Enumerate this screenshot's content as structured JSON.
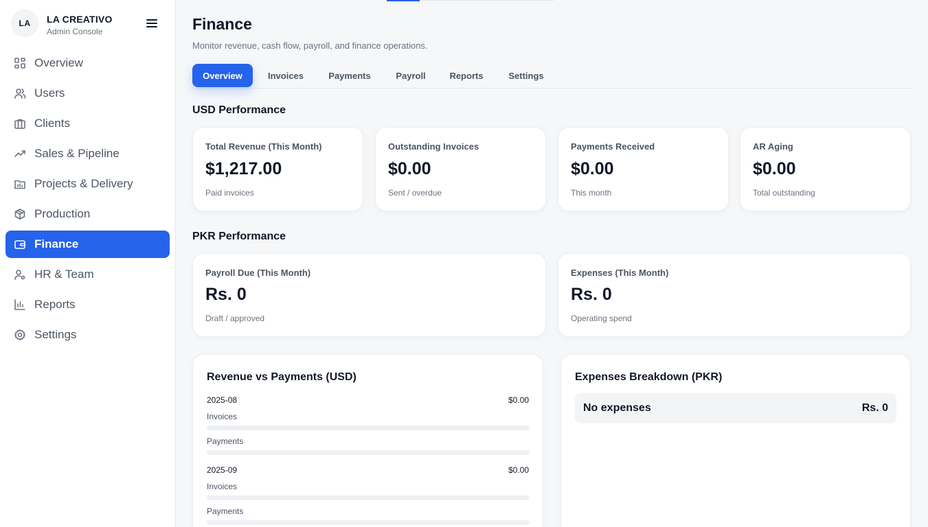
{
  "brand": {
    "initials": "LA",
    "name": "LA CREATIVO",
    "subtitle": "Admin Console"
  },
  "sidebar": {
    "items": [
      {
        "label": "Overview",
        "icon": "grid-icon",
        "active": false
      },
      {
        "label": "Users",
        "icon": "users-icon",
        "active": false
      },
      {
        "label": "Clients",
        "icon": "briefcase-icon",
        "active": false
      },
      {
        "label": "Sales & Pipeline",
        "icon": "trending-up-icon",
        "active": false
      },
      {
        "label": "Projects & Delivery",
        "icon": "folder-icon",
        "active": false
      },
      {
        "label": "Production",
        "icon": "box-icon",
        "active": false
      },
      {
        "label": "Finance",
        "icon": "wallet-icon",
        "active": true
      },
      {
        "label": "HR & Team",
        "icon": "user-cog-icon",
        "active": false
      },
      {
        "label": "Reports",
        "icon": "bar-chart-icon",
        "active": false
      },
      {
        "label": "Settings",
        "icon": "gear-icon",
        "active": false
      }
    ]
  },
  "page": {
    "title": "Finance",
    "subtitle": "Monitor revenue, cash flow, payroll, and finance operations."
  },
  "tabs": [
    {
      "label": "Overview",
      "active": true
    },
    {
      "label": "Invoices",
      "active": false
    },
    {
      "label": "Payments",
      "active": false
    },
    {
      "label": "Payroll",
      "active": false
    },
    {
      "label": "Reports",
      "active": false
    },
    {
      "label": "Settings",
      "active": false
    }
  ],
  "usd": {
    "title": "USD Performance",
    "cards": [
      {
        "label": "Total Revenue (This Month)",
        "value": "$1,217.00",
        "note": "Paid invoices"
      },
      {
        "label": "Outstanding Invoices",
        "value": "$0.00",
        "note": "Sent / overdue"
      },
      {
        "label": "Payments Received",
        "value": "$0.00",
        "note": "This month"
      },
      {
        "label": "AR Aging",
        "value": "$0.00",
        "note": "Total outstanding"
      }
    ]
  },
  "pkr": {
    "title": "PKR Performance",
    "cards": [
      {
        "label": "Payroll Due (This Month)",
        "value": "Rs. 0",
        "note": "Draft / approved"
      },
      {
        "label": "Expenses (This Month)",
        "value": "Rs. 0",
        "note": "Operating spend"
      }
    ]
  },
  "revenue_vs_payments": {
    "title": "Revenue vs Payments (USD)",
    "months": [
      {
        "month": "2025-08",
        "amount": "$0.00",
        "invoices_label": "Invoices",
        "payments_label": "Payments",
        "invoices_fraction": 0,
        "payments_fraction": 0
      },
      {
        "month": "2025-09",
        "amount": "$0.00",
        "invoices_label": "Invoices",
        "payments_label": "Payments",
        "invoices_fraction": 0,
        "payments_fraction": 0
      }
    ]
  },
  "expenses_breakdown": {
    "title": "Expenses Breakdown (PKR)",
    "rows": [
      {
        "name": "No expenses",
        "amount": "Rs. 0"
      }
    ]
  },
  "colors": {
    "accent": "#2563eb",
    "background": "#f6f7f9",
    "card": "#ffffff"
  }
}
